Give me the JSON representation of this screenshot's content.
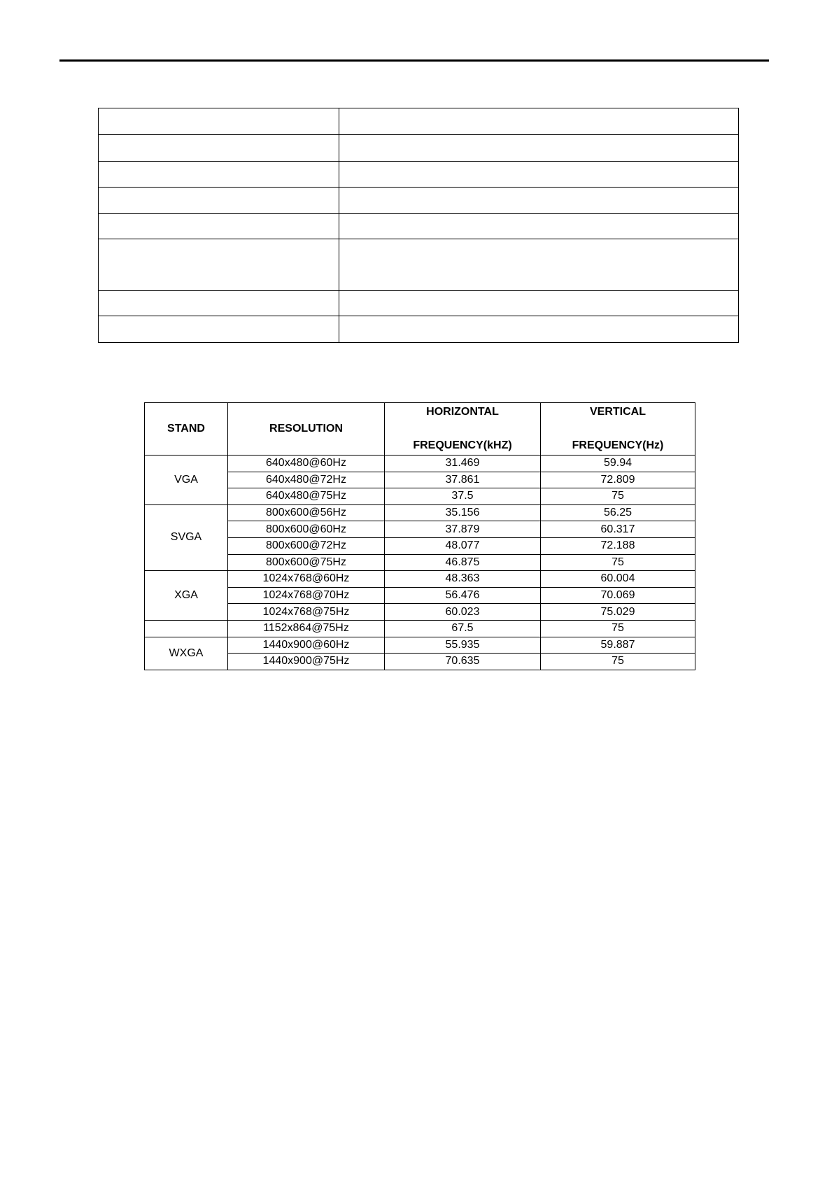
{
  "spec_table": {
    "row_count": 8,
    "rows": [
      [],
      [],
      [],
      [],
      [],
      [],
      [],
      []
    ]
  },
  "freq_table": {
    "headers": {
      "stand": "STAND",
      "resolution": "RESOLUTION",
      "horizontal_1": "HORIZONTAL",
      "horizontal_2": "FREQUENCY(kHZ)",
      "vertical_1": "VERTICAL",
      "vertical_2": "FREQUENCY(Hz)"
    },
    "groups": [
      {
        "stand": "VGA",
        "rows": [
          {
            "resolution": "640x480@60Hz",
            "h": "31.469",
            "v": "59.94"
          },
          {
            "resolution": "640x480@72Hz",
            "h": "37.861",
            "v": "72.809"
          },
          {
            "resolution": "640x480@75Hz",
            "h": "37.5",
            "v": "75"
          }
        ]
      },
      {
        "stand": "SVGA",
        "rows": [
          {
            "resolution": "800x600@56Hz",
            "h": "35.156",
            "v": "56.25"
          },
          {
            "resolution": "800x600@60Hz",
            "h": "37.879",
            "v": "60.317"
          },
          {
            "resolution": "800x600@72Hz",
            "h": "48.077",
            "v": "72.188"
          },
          {
            "resolution": "800x600@75Hz",
            "h": "46.875",
            "v": "75"
          }
        ]
      },
      {
        "stand": "XGA",
        "rows": [
          {
            "resolution": "1024x768@60Hz",
            "h": "48.363",
            "v": "60.004"
          },
          {
            "resolution": "1024x768@70Hz",
            "h": "56.476",
            "v": "70.069"
          },
          {
            "resolution": "1024x768@75Hz",
            "h": "60.023",
            "v": "75.029"
          }
        ]
      },
      {
        "stand": "",
        "rows": [
          {
            "resolution": "1152x864@75Hz",
            "h": "67.5",
            "v": "75"
          }
        ]
      },
      {
        "stand": "WXGA",
        "rows": [
          {
            "resolution": "1440x900@60Hz",
            "h": "55.935",
            "v": "59.887"
          },
          {
            "resolution": "1440x900@75Hz",
            "h": "70.635",
            "v": "75"
          }
        ]
      }
    ]
  }
}
